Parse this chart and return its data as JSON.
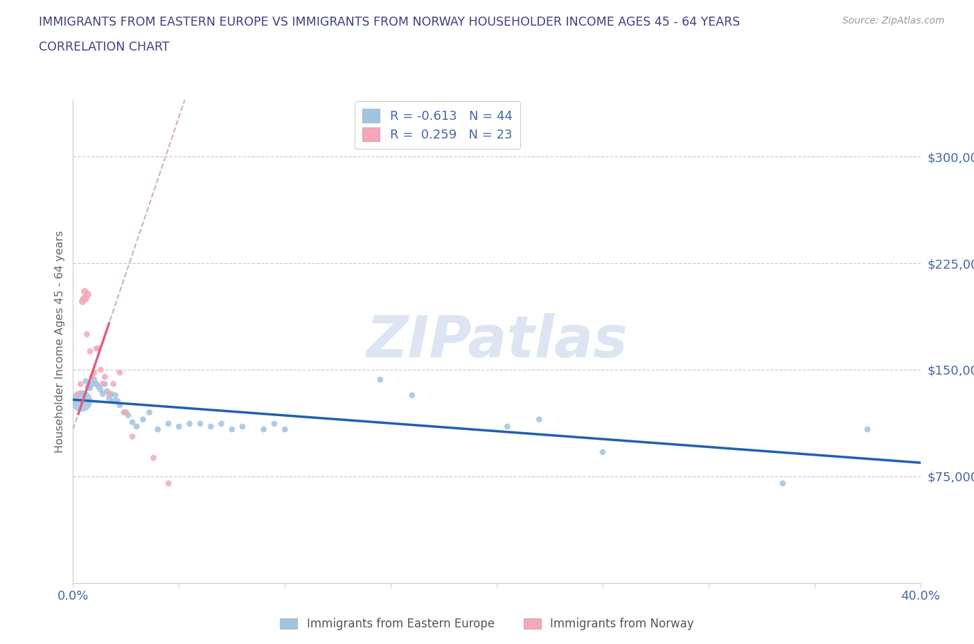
{
  "title_line1": "IMMIGRANTS FROM EASTERN EUROPE VS IMMIGRANTS FROM NORWAY HOUSEHOLDER INCOME AGES 45 - 64 YEARS",
  "title_line2": "CORRELATION CHART",
  "source": "Source: ZipAtlas.com",
  "ylabel": "Householder Income Ages 45 - 64 years",
  "y_ticks": [
    75000,
    150000,
    225000,
    300000
  ],
  "y_tick_labels": [
    "$75,000",
    "$150,000",
    "$225,000",
    "$300,000"
  ],
  "x_min": 0.0,
  "x_max": 40.0,
  "y_min": 0,
  "y_max": 340000,
  "blue_R": -0.613,
  "blue_N": 44,
  "pink_R": 0.259,
  "pink_N": 23,
  "blue_color": "#a0c4e0",
  "pink_color": "#f4a8b8",
  "blue_line_color": "#2060b0",
  "pink_line_color": "#e06080",
  "pink_dash_color": "#d0b0b8",
  "legend_label_blue": "Immigrants from Eastern Europe",
  "legend_label_pink": "Immigrants from Norway",
  "watermark": "ZIPatlas",
  "title_color": "#404080",
  "axis_color": "#4466aa",
  "tick_color": "#aaaaaa",
  "blue_scatter_x": [
    0.4,
    0.5,
    0.6,
    0.7,
    0.8,
    0.9,
    1.0,
    1.1,
    1.2,
    1.3,
    1.4,
    1.5,
    1.6,
    1.7,
    1.8,
    1.9,
    2.0,
    2.1,
    2.2,
    2.4,
    2.6,
    2.8,
    3.0,
    3.3,
    3.6,
    4.0,
    4.5,
    5.0,
    5.5,
    6.0,
    6.5,
    7.0,
    7.5,
    8.0,
    9.0,
    9.5,
    10.0,
    14.5,
    16.0,
    20.5,
    22.0,
    25.0,
    33.5,
    37.5
  ],
  "blue_scatter_y": [
    128000,
    133000,
    142000,
    138000,
    137000,
    140000,
    143000,
    140000,
    138000,
    136000,
    133000,
    140000,
    135000,
    130000,
    133000,
    128000,
    132000,
    128000,
    125000,
    120000,
    118000,
    113000,
    110000,
    115000,
    120000,
    108000,
    112000,
    110000,
    112000,
    112000,
    110000,
    112000,
    108000,
    110000,
    108000,
    112000,
    108000,
    143000,
    132000,
    110000,
    115000,
    92000,
    70000,
    108000
  ],
  "blue_scatter_sizes": [
    500,
    40,
    40,
    40,
    40,
    40,
    40,
    40,
    40,
    40,
    40,
    40,
    40,
    40,
    40,
    40,
    40,
    40,
    40,
    40,
    40,
    40,
    40,
    40,
    40,
    40,
    40,
    40,
    40,
    40,
    40,
    40,
    40,
    40,
    40,
    40,
    40,
    40,
    40,
    40,
    40,
    40,
    40,
    40
  ],
  "pink_scatter_x": [
    0.25,
    0.35,
    0.45,
    0.5,
    0.55,
    0.6,
    0.65,
    0.7,
    0.8,
    0.9,
    1.0,
    1.1,
    1.2,
    1.3,
    1.4,
    1.5,
    1.7,
    1.9,
    2.2,
    2.5,
    2.8,
    3.8,
    4.5
  ],
  "pink_scatter_y": [
    133000,
    140000,
    198000,
    200000,
    205000,
    200000,
    175000,
    203000,
    163000,
    145000,
    148000,
    165000,
    165000,
    150000,
    140000,
    145000,
    133000,
    140000,
    148000,
    120000,
    103000,
    88000,
    70000
  ],
  "pink_scatter_sizes": [
    40,
    40,
    55,
    55,
    55,
    55,
    40,
    55,
    40,
    40,
    40,
    40,
    40,
    40,
    40,
    40,
    40,
    40,
    40,
    40,
    40,
    40,
    40
  ],
  "pink_line_x_solid_start": 0.25,
  "pink_line_x_solid_end": 1.7,
  "pink_line_x_dash_start": 0.0,
  "pink_line_x_dash_end": 7.0
}
